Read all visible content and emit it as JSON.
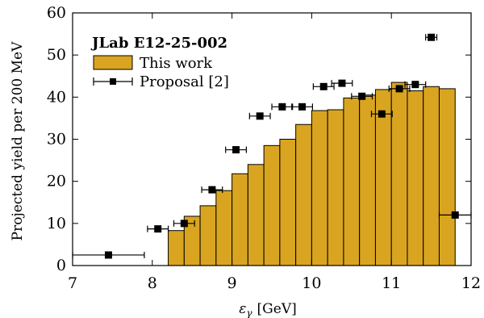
{
  "chart_data": {
    "type": "bar",
    "title": "JLab E12-25-002",
    "xlabel": "εγ [GeV]",
    "xlabel_main": "ε",
    "xlabel_sub": "γ",
    "xlabel_unit": "[GeV]",
    "ylabel": "Projected yield per 200 MeV",
    "xlim": [
      7,
      12
    ],
    "ylim": [
      0,
      60
    ],
    "xticks": [
      7,
      8,
      9,
      10,
      11,
      12
    ],
    "yticks": [
      0,
      10,
      20,
      30,
      40,
      50,
      60
    ],
    "grid": false,
    "legend_position": "top-left",
    "colors": {
      "bars": "#d9a520",
      "bar_edge": "#000000",
      "markers": "#000000"
    },
    "series": [
      {
        "name": "This work",
        "kind": "histogram",
        "bin_edges": [
          8.2,
          8.4,
          8.6,
          8.8,
          9.0,
          9.2,
          9.4,
          9.6,
          9.8,
          10.0,
          10.2,
          10.4,
          10.6,
          10.8,
          11.0,
          11.2,
          11.4,
          11.6,
          11.8
        ],
        "values": [
          8.3,
          11.7,
          14.2,
          17.8,
          21.8,
          24.0,
          28.5,
          30.0,
          33.5,
          36.8,
          37.0,
          39.8,
          40.5,
          41.8,
          43.5,
          41.5,
          42.5,
          42.0
        ]
      },
      {
        "name": "Proposal [2]",
        "kind": "errorbar",
        "x": [
          7.45,
          8.07,
          8.4,
          8.75,
          9.05,
          9.35,
          9.63,
          9.88,
          10.15,
          10.38,
          10.63,
          10.88,
          11.1,
          11.3,
          11.5,
          11.8
        ],
        "xerr": [
          0.45,
          0.13,
          0.13,
          0.13,
          0.13,
          0.13,
          0.13,
          0.13,
          0.13,
          0.13,
          0.13,
          0.13,
          0.13,
          0.13,
          0.07,
          0.2
        ],
        "y": [
          2.5,
          8.7,
          10.0,
          18.0,
          27.5,
          35.5,
          37.7,
          37.7,
          42.5,
          43.3,
          40.2,
          36.0,
          42.0,
          43.0,
          54.2,
          12.0
        ]
      }
    ]
  }
}
